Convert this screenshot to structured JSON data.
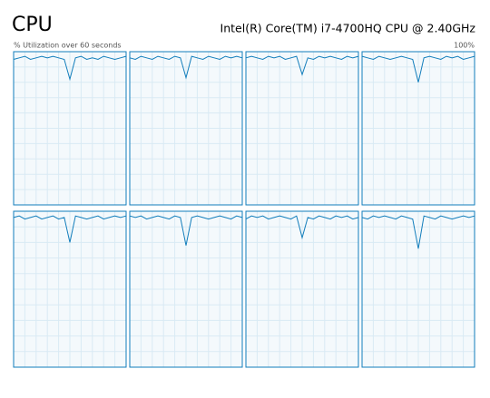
{
  "header": {
    "title": "CPU",
    "processor": "Intel(R) Core(TM) i7-4700HQ CPU @ 2.40GHz",
    "y_label": "% Utilization over 60 seconds",
    "y_max_label": "100%"
  },
  "chart_data": [
    {
      "type": "line",
      "color": "#117dbb",
      "grid": true,
      "xlim": [
        0,
        60
      ],
      "ylim": [
        0,
        100
      ],
      "xticks": [
        0,
        6,
        12,
        18,
        24,
        30,
        36,
        42,
        48,
        54,
        60
      ],
      "yticks": [
        0,
        10,
        20,
        30,
        40,
        50,
        60,
        70,
        80,
        90,
        100
      ],
      "x": [
        0,
        3,
        6,
        9,
        12,
        15,
        18,
        21,
        24,
        27,
        30,
        33,
        36,
        39,
        42,
        45,
        48,
        51,
        54,
        57,
        60
      ],
      "values": [
        95,
        96,
        97,
        95,
        96,
        97,
        96,
        97,
        96,
        95,
        82,
        96,
        97,
        95,
        96,
        95,
        97,
        96,
        95,
        96,
        97
      ]
    },
    {
      "type": "line",
      "color": "#117dbb",
      "grid": true,
      "xlim": [
        0,
        60
      ],
      "ylim": [
        0,
        100
      ],
      "xticks": [
        0,
        6,
        12,
        18,
        24,
        30,
        36,
        42,
        48,
        54,
        60
      ],
      "yticks": [
        0,
        10,
        20,
        30,
        40,
        50,
        60,
        70,
        80,
        90,
        100
      ],
      "x": [
        0,
        3,
        6,
        9,
        12,
        15,
        18,
        21,
        24,
        27,
        30,
        33,
        36,
        39,
        42,
        45,
        48,
        51,
        54,
        57,
        60
      ],
      "values": [
        96,
        95,
        97,
        96,
        95,
        97,
        96,
        95,
        97,
        96,
        83,
        97,
        96,
        95,
        97,
        96,
        95,
        97,
        96,
        97,
        96
      ]
    },
    {
      "type": "line",
      "color": "#117dbb",
      "grid": true,
      "xlim": [
        0,
        60
      ],
      "ylim": [
        0,
        100
      ],
      "xticks": [
        0,
        6,
        12,
        18,
        24,
        30,
        36,
        42,
        48,
        54,
        60
      ],
      "yticks": [
        0,
        10,
        20,
        30,
        40,
        50,
        60,
        70,
        80,
        90,
        100
      ],
      "x": [
        0,
        3,
        6,
        9,
        12,
        15,
        18,
        21,
        24,
        27,
        30,
        33,
        36,
        39,
        42,
        45,
        48,
        51,
        54,
        57,
        60
      ],
      "values": [
        96,
        97,
        96,
        95,
        97,
        96,
        97,
        95,
        96,
        97,
        85,
        96,
        95,
        97,
        96,
        97,
        96,
        95,
        97,
        96,
        97
      ]
    },
    {
      "type": "line",
      "color": "#117dbb",
      "grid": true,
      "xlim": [
        0,
        60
      ],
      "ylim": [
        0,
        100
      ],
      "xticks": [
        0,
        6,
        12,
        18,
        24,
        30,
        36,
        42,
        48,
        54,
        60
      ],
      "yticks": [
        0,
        10,
        20,
        30,
        40,
        50,
        60,
        70,
        80,
        90,
        100
      ],
      "x": [
        0,
        3,
        6,
        9,
        12,
        15,
        18,
        21,
        24,
        27,
        30,
        33,
        36,
        39,
        42,
        45,
        48,
        51,
        54,
        57,
        60
      ],
      "values": [
        97,
        96,
        95,
        97,
        96,
        95,
        96,
        97,
        96,
        95,
        80,
        96,
        97,
        96,
        95,
        97,
        96,
        97,
        95,
        96,
        97
      ]
    },
    {
      "type": "line",
      "color": "#117dbb",
      "grid": true,
      "xlim": [
        0,
        60
      ],
      "ylim": [
        0,
        100
      ],
      "xticks": [
        0,
        6,
        12,
        18,
        24,
        30,
        36,
        42,
        48,
        54,
        60
      ],
      "yticks": [
        0,
        10,
        20,
        30,
        40,
        50,
        60,
        70,
        80,
        90,
        100
      ],
      "x": [
        0,
        3,
        6,
        9,
        12,
        15,
        18,
        21,
        24,
        27,
        30,
        33,
        36,
        39,
        42,
        45,
        48,
        51,
        54,
        57,
        60
      ],
      "values": [
        96,
        97,
        95,
        96,
        97,
        95,
        96,
        97,
        95,
        96,
        80,
        97,
        96,
        95,
        96,
        97,
        95,
        96,
        97,
        96,
        97
      ]
    },
    {
      "type": "line",
      "color": "#117dbb",
      "grid": true,
      "xlim": [
        0,
        60
      ],
      "ylim": [
        0,
        100
      ],
      "xticks": [
        0,
        6,
        12,
        18,
        24,
        30,
        36,
        42,
        48,
        54,
        60
      ],
      "yticks": [
        0,
        10,
        20,
        30,
        40,
        50,
        60,
        70,
        80,
        90,
        100
      ],
      "x": [
        0,
        3,
        6,
        9,
        12,
        15,
        18,
        21,
        24,
        27,
        30,
        33,
        36,
        39,
        42,
        45,
        48,
        51,
        54,
        57,
        60
      ],
      "values": [
        97,
        96,
        97,
        95,
        96,
        97,
        96,
        95,
        97,
        96,
        78,
        96,
        97,
        96,
        95,
        96,
        97,
        96,
        95,
        97,
        96
      ]
    },
    {
      "type": "line",
      "color": "#117dbb",
      "grid": true,
      "xlim": [
        0,
        60
      ],
      "ylim": [
        0,
        100
      ],
      "xticks": [
        0,
        6,
        12,
        18,
        24,
        30,
        36,
        42,
        48,
        54,
        60
      ],
      "yticks": [
        0,
        10,
        20,
        30,
        40,
        50,
        60,
        70,
        80,
        90,
        100
      ],
      "x": [
        0,
        3,
        6,
        9,
        12,
        15,
        18,
        21,
        24,
        27,
        30,
        33,
        36,
        39,
        42,
        45,
        48,
        51,
        54,
        57,
        60
      ],
      "values": [
        95,
        97,
        96,
        97,
        95,
        96,
        97,
        96,
        95,
        97,
        83,
        96,
        95,
        97,
        96,
        95,
        97,
        96,
        97,
        95,
        96
      ]
    },
    {
      "type": "line",
      "color": "#117dbb",
      "grid": true,
      "xlim": [
        0,
        60
      ],
      "ylim": [
        0,
        100
      ],
      "xticks": [
        0,
        6,
        12,
        18,
        24,
        30,
        36,
        42,
        48,
        54,
        60
      ],
      "yticks": [
        0,
        10,
        20,
        30,
        40,
        50,
        60,
        70,
        80,
        90,
        100
      ],
      "x": [
        0,
        3,
        6,
        9,
        12,
        15,
        18,
        21,
        24,
        27,
        30,
        33,
        36,
        39,
        42,
        45,
        48,
        51,
        54,
        57,
        60
      ],
      "values": [
        96,
        95,
        97,
        96,
        97,
        96,
        95,
        97,
        96,
        95,
        76,
        97,
        96,
        95,
        97,
        96,
        95,
        96,
        97,
        96,
        97
      ]
    }
  ]
}
